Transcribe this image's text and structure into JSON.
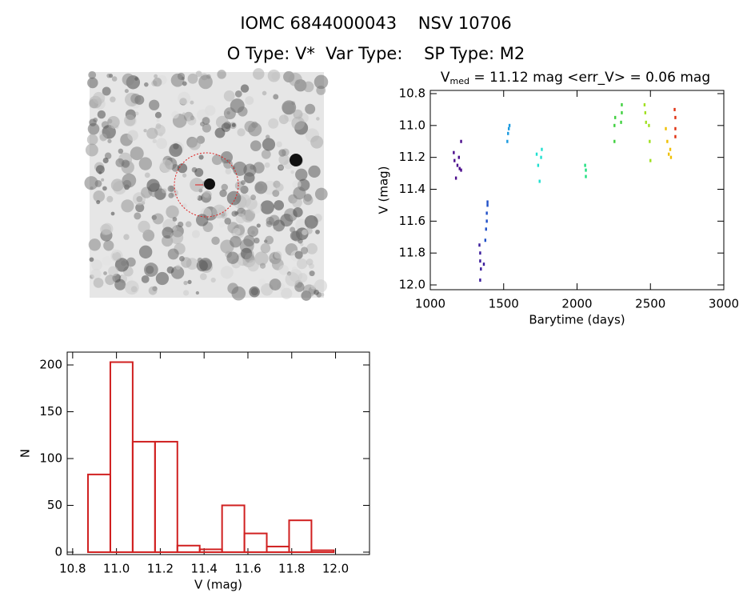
{
  "header": {
    "title": "IOMC 6844000043    NSV 10706",
    "subtitle": "O Type: V*  Var Type:    SP Type: M2"
  },
  "chart_data": [
    {
      "type": "scatter",
      "title": "V",
      "title_subscript": "med",
      "title_rest": " = 11.12 mag <err_V> = 0.06 mag",
      "x_label": "Barytime (days)",
      "y_label": "V (mag)",
      "xlim": [
        1000,
        3000
      ],
      "xticks": [
        1000,
        1500,
        2000,
        2500,
        3000
      ],
      "ylim": [
        12.03,
        10.78
      ],
      "yticks": [
        10.8,
        {
          "value": 11,
          "label": "11.0"
        },
        11.2,
        11.4,
        11.6,
        11.8,
        {
          "value": 12,
          "label": "12.0"
        }
      ],
      "series": [
        {
          "color": "#4b0c8c",
          "x": [
            1160,
            1165,
            1175,
            1185,
            1195,
            1200,
            1210,
            1210
          ],
          "values": [
            11.17,
            11.22,
            11.33,
            11.25,
            11.2,
            11.27,
            11.1,
            11.28
          ]
        },
        {
          "color": "#3a1c9c",
          "x": [
            1335,
            1340,
            1340,
            1345,
            1340,
            1365
          ],
          "values": [
            11.75,
            11.8,
            11.85,
            11.9,
            11.97,
            11.87
          ]
        },
        {
          "color": "#2050c8",
          "x": [
            1375,
            1380,
            1385,
            1385,
            1390,
            1390
          ],
          "values": [
            11.72,
            11.65,
            11.6,
            11.55,
            11.5,
            11.48
          ]
        },
        {
          "color": "#1a9ae0",
          "x": [
            1525,
            1530,
            1535,
            1540
          ],
          "values": [
            11.1,
            11.05,
            11.02,
            11.0
          ]
        },
        {
          "color": "#20e0d0",
          "x": [
            1725,
            1735,
            1745,
            1755,
            1760
          ],
          "values": [
            11.18,
            11.25,
            11.35,
            11.2,
            11.15
          ]
        },
        {
          "color": "#20e080",
          "x": [
            2055,
            2060,
            2060
          ],
          "values": [
            11.25,
            11.28,
            11.32
          ]
        },
        {
          "color": "#40d040",
          "x": [
            2255,
            2255,
            2260,
            2300,
            2305,
            2305
          ],
          "values": [
            11.1,
            11.0,
            10.95,
            10.98,
            10.92,
            10.87
          ]
        },
        {
          "color": "#a0e020",
          "x": [
            2460,
            2465,
            2470,
            2490,
            2495,
            2500
          ],
          "values": [
            10.87,
            10.92,
            10.98,
            11.0,
            11.1,
            11.22
          ]
        },
        {
          "color": "#f0c000",
          "x": [
            2605,
            2615,
            2625,
            2635,
            2640
          ],
          "values": [
            11.02,
            11.1,
            11.18,
            11.15,
            11.2
          ]
        },
        {
          "color": "#e03010",
          "x": [
            2665,
            2670,
            2670,
            2670
          ],
          "values": [
            10.9,
            10.95,
            11.02,
            11.07
          ]
        }
      ]
    },
    {
      "type": "histogram",
      "x_label": "V (mag)",
      "y_label": "N",
      "color": "#d02020",
      "bins": [
        10.87,
        10.972,
        11.074,
        11.176,
        11.278,
        11.38,
        11.482,
        11.584,
        11.686,
        11.788,
        11.89,
        11.992
      ],
      "values": [
        83,
        203,
        118,
        118,
        7,
        3,
        50,
        20,
        6,
        34,
        2
      ],
      "xlim": [
        10.775,
        12.155
      ],
      "xticks": [
        10.8,
        {
          "value": 11,
          "label": "11.0"
        },
        11.2,
        11.4,
        11.6,
        11.8,
        {
          "value": 12,
          "label": "12.0"
        }
      ],
      "ylim": [
        -2.6,
        213.7
      ],
      "yticks": [
        0,
        50,
        100,
        150,
        200
      ]
    }
  ]
}
